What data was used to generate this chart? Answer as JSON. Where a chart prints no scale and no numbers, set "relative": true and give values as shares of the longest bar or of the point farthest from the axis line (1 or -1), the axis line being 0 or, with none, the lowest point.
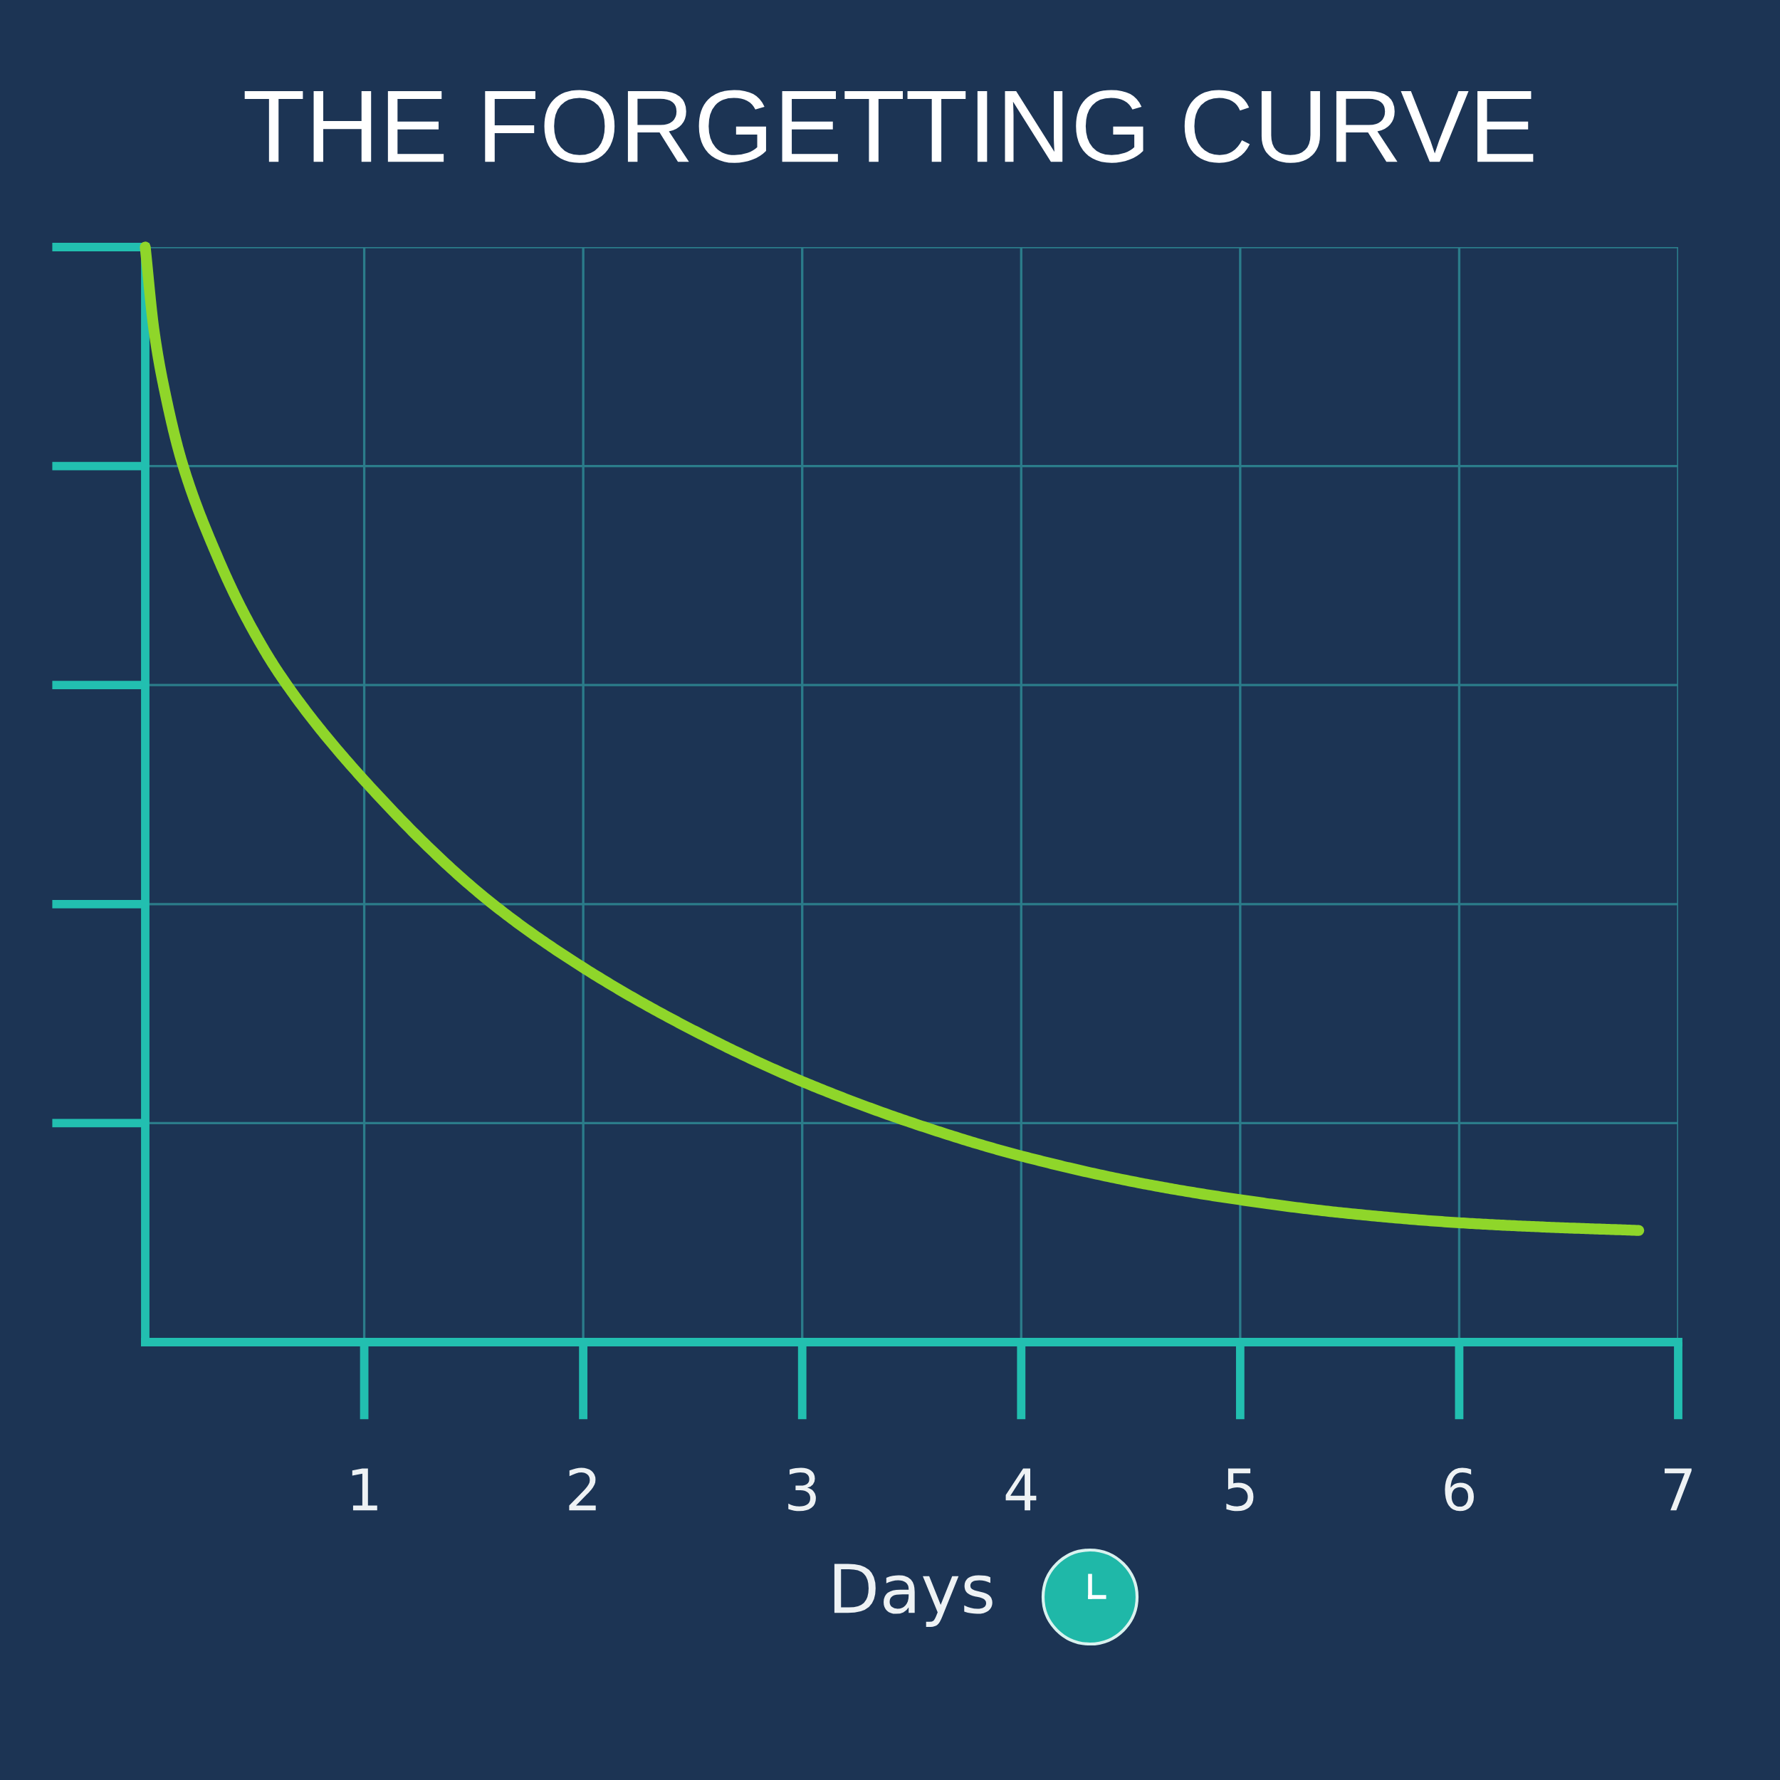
{
  "chart_data": {
    "type": "line",
    "title": "THE FORGETTING CURVE",
    "xlabel": "Days",
    "x": [
      0,
      0.04,
      0.1,
      0.17,
      0.33,
      0.46,
      0.62,
      1.0,
      1.55,
      2.0,
      2.5,
      3.0,
      3.52,
      4.0,
      4.55,
      5.0,
      5.47,
      6.0,
      6.4,
      6.82
    ],
    "series": [
      {
        "color": "#8fd62a",
        "values": [
          1.0,
          0.924,
          0.858,
          0.802,
          0.717,
          0.662,
          0.608,
          0.513,
          0.406,
          0.342,
          0.285,
          0.238,
          0.199,
          0.17,
          0.145,
          0.13,
          0.118,
          0.109,
          0.105,
          0.102
        ]
      }
    ],
    "relative": true,
    "xlim": [
      0,
      7
    ],
    "xticks": [
      1,
      2,
      3,
      4,
      5,
      6,
      7
    ],
    "grid": true,
    "tick_labels": "x"
  }
}
